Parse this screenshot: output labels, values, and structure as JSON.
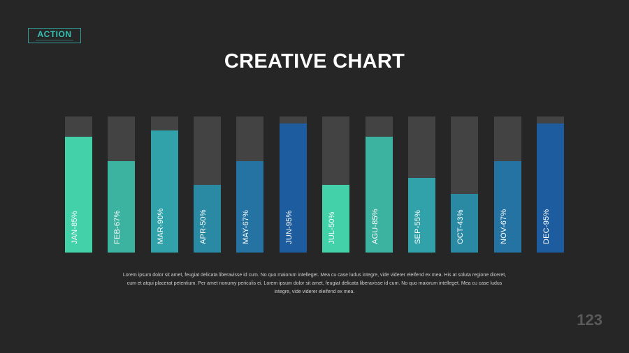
{
  "logo": {
    "text": "ACTION"
  },
  "title": "CREATIVE CHART",
  "chart_data": {
    "type": "bar",
    "categories": [
      "JAN",
      "FEB",
      "MAR",
      "APR",
      "MAY",
      "JUN",
      "JUL",
      "AGU",
      "SEP",
      "OCT",
      "NOV",
      "DEC"
    ],
    "values": [
      85,
      67,
      90,
      50,
      67,
      95,
      50,
      85,
      55,
      43,
      67,
      95
    ],
    "labels": [
      "JAN-85%",
      "FEB-67%",
      "MAR-90%",
      "APR-50%",
      "MAY-67%",
      "JUN-95%",
      "JUL-50%",
      "AGU-85%",
      "SEP-55%",
      "OCT-43%",
      "NOV-67%",
      "DEC-95%"
    ],
    "ylim": [
      0,
      100
    ],
    "colors": [
      "#43d1a9",
      "#3cb2a0",
      "#31a2a9",
      "#2a8aa4",
      "#2473a3",
      "#1d5c9e",
      "#43d1a9",
      "#3cb2a0",
      "#31a2a9",
      "#2a8aa4",
      "#2473a3",
      "#1d5c9e"
    ],
    "track_color": "#434343"
  },
  "body_text": "Lorem ipsum dolor sit amet, feugiat delicata liberavisse id cum. No quo maiorum intelleget. Mea cu case ludus integre, vide viderer eleifend ex mea. His at soluta regione diceret, cum et atqui placerat petentium. Per amet nonumy periculis ei. Lorem ipsum dolor sit amet, feugiat delicata liberavisse id cum. No quo maiorum intelleget. Mea cu case ludus integre, vide viderer eleifend ex mea.",
  "page_number": "123"
}
